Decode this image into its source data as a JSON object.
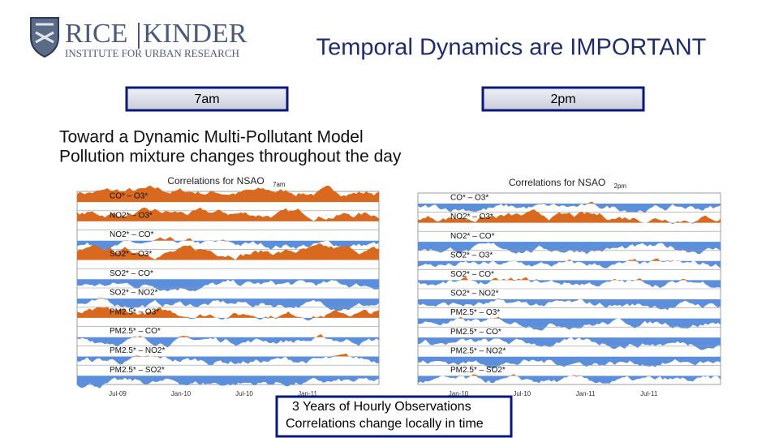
{
  "header": {
    "logo_main": "RICE",
    "logo_main2": "KINDER",
    "logo_sub": "INSTITUTE FOR URBAN RESEARCH",
    "title": "Temporal Dynamics are IMPORTANT"
  },
  "time_labels": [
    "7am",
    "2pm"
  ],
  "subtitle": [
    "Toward a Dynamic Multi-Pollutant Model",
    "Pollution mixture changes throughout the day"
  ],
  "charts": [
    {
      "title": "Correlations for NSAO",
      "title_sub": "7am",
      "panels": [
        "CO* – O3*",
        "NO2* – O3*",
        "NO2* – CO*",
        "SO2* – O3*",
        "SO2* – CO*",
        "SO2* – NO2*",
        "PM2.5* – O3*",
        "PM2.5* – CO*",
        "PM2.5* – NO2*",
        "PM2.5* – SO2*"
      ],
      "x_labels": [
        "Jul-09",
        "Jan-10",
        "Jul-10",
        "Jan-11"
      ]
    },
    {
      "title": "Correlations for NSAO",
      "title_sub": "2pm",
      "panels": [
        "CO* – O3*",
        "NO2* – O3*",
        "NO2* – CO*",
        "SO2* – O3*",
        "SO2* – CO*",
        "SO2* – NO2*",
        "PM2.5* – O3*",
        "PM2.5* – CO*",
        "PM2.5* – NO2*",
        "PM2.5* – SO2*"
      ],
      "x_labels": [
        "Jan-10",
        "Jul-10",
        "Jan-11",
        "Jul-11"
      ]
    }
  ],
  "note": [
    "3 Years of Hourly Observations",
    "Correlations change locally in time"
  ]
}
